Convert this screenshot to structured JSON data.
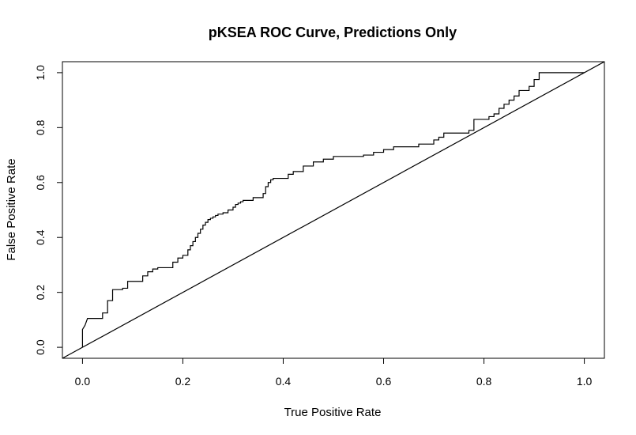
{
  "chart_data": {
    "type": "line",
    "title": "pKSEA ROC Curve, Predictions Only",
    "xlabel": "True Positive Rate",
    "ylabel": "False Positive Rate",
    "xlim": [
      -0.04,
      1.04
    ],
    "ylim": [
      -0.04,
      1.04
    ],
    "x_ticks": [
      0.0,
      0.2,
      0.4,
      0.6,
      0.8,
      1.0
    ],
    "x_tick_labels": [
      "0.0",
      "0.2",
      "0.4",
      "0.6",
      "0.8",
      "1.0"
    ],
    "y_ticks": [
      0.0,
      0.2,
      0.4,
      0.6,
      0.8,
      1.0
    ],
    "y_tick_labels": [
      "0.0",
      "0.2",
      "0.4",
      "0.6",
      "0.8",
      "1.0"
    ],
    "grid": false,
    "legend": "none",
    "series": [
      {
        "kind": "step",
        "color": "#000000",
        "x": [
          0.0,
          0.0,
          0.0,
          0.005,
          0.005,
          0.01,
          0.01,
          0.04,
          0.04,
          0.05,
          0.05,
          0.06,
          0.06,
          0.08,
          0.08,
          0.09,
          0.09,
          0.12,
          0.12,
          0.13,
          0.13,
          0.14,
          0.14,
          0.15,
          0.15,
          0.18,
          0.18,
          0.19,
          0.19,
          0.2,
          0.2,
          0.21,
          0.21,
          0.215,
          0.215,
          0.22,
          0.22,
          0.225,
          0.225,
          0.23,
          0.23,
          0.235,
          0.235,
          0.24,
          0.24,
          0.245,
          0.245,
          0.25,
          0.25,
          0.255,
          0.255,
          0.26,
          0.26,
          0.265,
          0.265,
          0.27,
          0.27,
          0.28,
          0.28,
          0.29,
          0.29,
          0.3,
          0.3,
          0.305,
          0.305,
          0.31,
          0.31,
          0.315,
          0.315,
          0.32,
          0.32,
          0.34,
          0.34,
          0.36,
          0.36,
          0.365,
          0.365,
          0.37,
          0.37,
          0.375,
          0.375,
          0.38,
          0.38,
          0.41,
          0.41,
          0.42,
          0.42,
          0.44,
          0.44,
          0.46,
          0.46,
          0.48,
          0.48,
          0.5,
          0.5,
          0.56,
          0.56,
          0.58,
          0.58,
          0.6,
          0.6,
          0.62,
          0.62,
          0.67,
          0.67,
          0.7,
          0.7,
          0.71,
          0.71,
          0.72,
          0.72,
          0.77,
          0.77,
          0.78,
          0.78,
          0.81,
          0.81,
          0.82,
          0.82,
          0.83,
          0.83,
          0.84,
          0.84,
          0.85,
          0.85,
          0.86,
          0.86,
          0.87,
          0.87,
          0.89,
          0.89,
          0.9,
          0.9,
          0.91,
          0.91,
          1.0
        ],
        "y": [
          0.0,
          0.065,
          0.065,
          0.08,
          0.08,
          0.105,
          0.105,
          0.105,
          0.125,
          0.125,
          0.17,
          0.17,
          0.21,
          0.21,
          0.215,
          0.215,
          0.24,
          0.24,
          0.26,
          0.26,
          0.275,
          0.275,
          0.285,
          0.285,
          0.29,
          0.29,
          0.31,
          0.31,
          0.325,
          0.325,
          0.335,
          0.335,
          0.355,
          0.355,
          0.37,
          0.37,
          0.385,
          0.385,
          0.4,
          0.4,
          0.415,
          0.415,
          0.43,
          0.43,
          0.445,
          0.445,
          0.455,
          0.455,
          0.465,
          0.465,
          0.47,
          0.47,
          0.475,
          0.475,
          0.48,
          0.48,
          0.485,
          0.485,
          0.49,
          0.49,
          0.5,
          0.5,
          0.51,
          0.51,
          0.52,
          0.52,
          0.525,
          0.525,
          0.53,
          0.53,
          0.535,
          0.535,
          0.545,
          0.545,
          0.56,
          0.56,
          0.585,
          0.585,
          0.6,
          0.6,
          0.61,
          0.61,
          0.615,
          0.615,
          0.63,
          0.63,
          0.64,
          0.64,
          0.66,
          0.66,
          0.675,
          0.675,
          0.685,
          0.685,
          0.695,
          0.695,
          0.7,
          0.7,
          0.71,
          0.71,
          0.72,
          0.72,
          0.73,
          0.73,
          0.74,
          0.74,
          0.755,
          0.755,
          0.765,
          0.765,
          0.78,
          0.78,
          0.79,
          0.79,
          0.83,
          0.83,
          0.84,
          0.84,
          0.85,
          0.85,
          0.87,
          0.87,
          0.885,
          0.885,
          0.9,
          0.9,
          0.915,
          0.915,
          0.935,
          0.935,
          0.95,
          0.95,
          0.975,
          0.975,
          1.0,
          1.0
        ]
      },
      {
        "kind": "diagonal",
        "color": "#000000",
        "x": [
          -0.04,
          1.04
        ],
        "y": [
          -0.04,
          1.04
        ]
      }
    ]
  }
}
